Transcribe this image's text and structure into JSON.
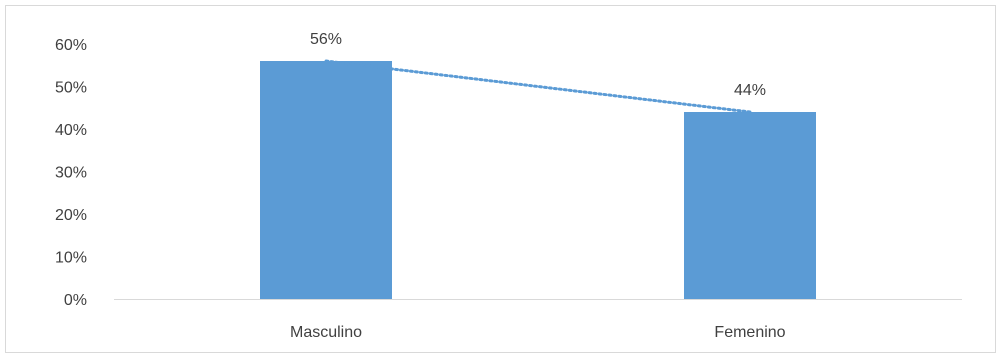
{
  "chart_data": {
    "type": "bar",
    "categories": [
      "Masculino",
      "Femenino"
    ],
    "values": [
      56,
      44
    ],
    "data_labels": [
      "56%",
      "44%"
    ],
    "y_ticks": [
      "0%",
      "10%",
      "20%",
      "30%",
      "40%",
      "50%",
      "60%"
    ],
    "ylim": [
      0,
      60
    ],
    "y_step": 10,
    "bar_color": "#5b9bd5",
    "trendline_color": "#5b9bd5",
    "trendline": "linear",
    "grid": false,
    "legend": "none"
  }
}
